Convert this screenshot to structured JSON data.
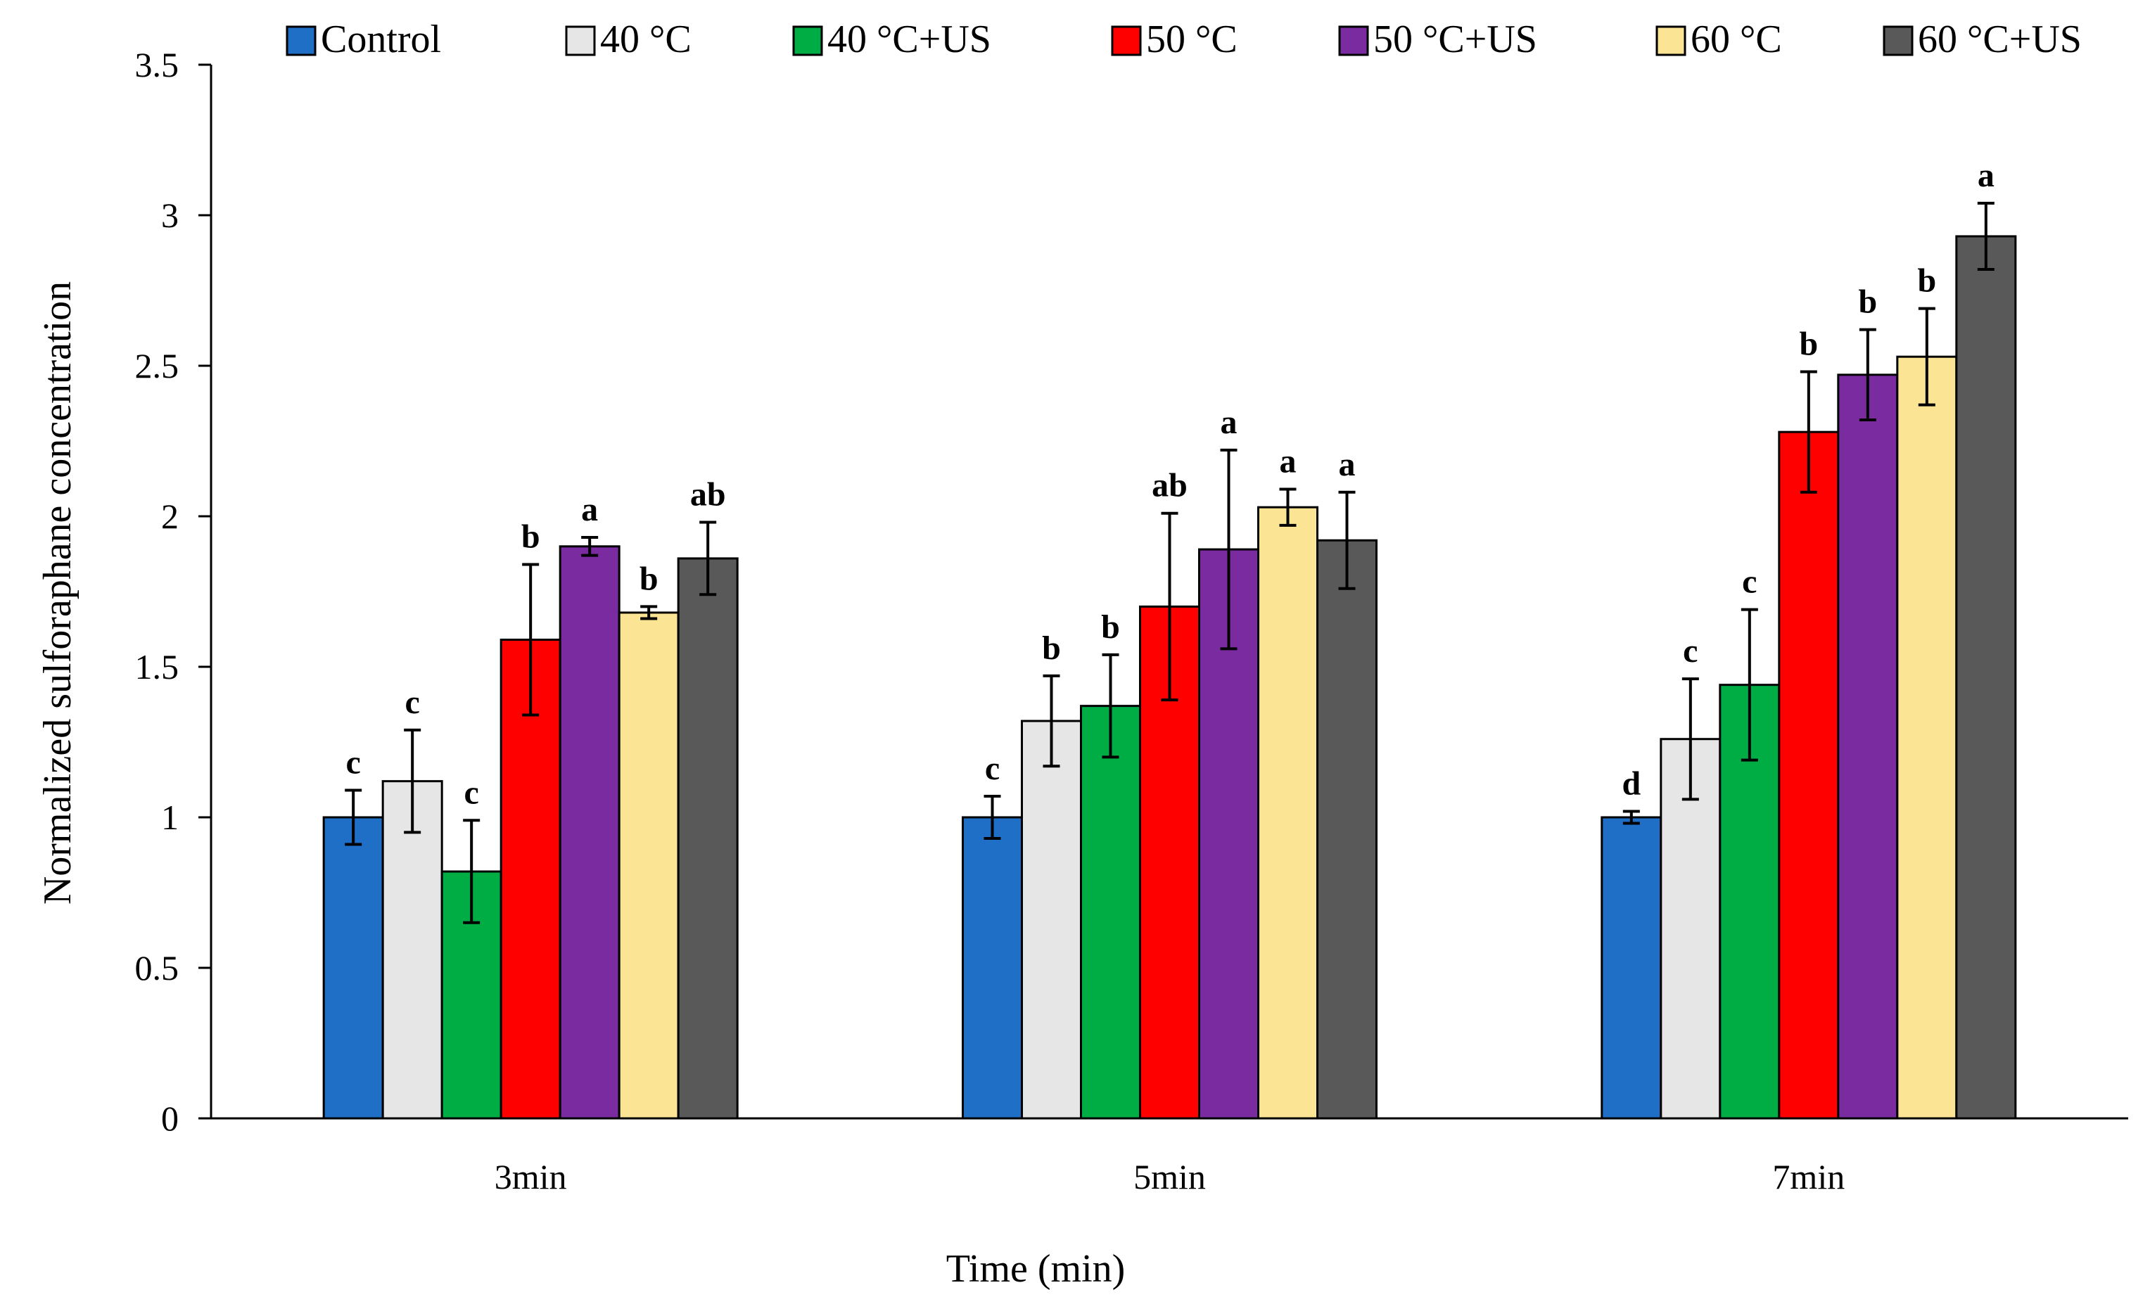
{
  "chart_data": {
    "type": "bar",
    "title": "",
    "xlabel": "Time (min)",
    "ylabel": "Normalized sulforaphane concentration",
    "ylim": [
      0,
      3.5
    ],
    "yticks": [
      "0",
      "0.5",
      "1",
      "1.5",
      "2",
      "2.5",
      "3",
      "3.5"
    ],
    "ytick_values": [
      0,
      0.5,
      1,
      1.5,
      2,
      2.5,
      3,
      3.5
    ],
    "grid": false,
    "legend_position": "top",
    "categories": [
      "3min",
      "5min",
      "7min"
    ],
    "series": [
      {
        "name": "Control",
        "color": "#1f6fc7",
        "values": [
          1.0,
          1.0,
          1.0
        ],
        "errors": [
          0.09,
          0.07,
          0.02
        ],
        "labels": [
          "c",
          "c",
          "d"
        ]
      },
      {
        "name": "40 °C",
        "color": "#e6e6e6",
        "values": [
          1.12,
          1.32,
          1.26
        ],
        "errors": [
          0.17,
          0.15,
          0.2
        ],
        "labels": [
          "c",
          "b",
          "c"
        ]
      },
      {
        "name": "40 °C+US",
        "color": "#00ad45",
        "values": [
          0.82,
          1.37,
          1.44
        ],
        "errors": [
          0.17,
          0.17,
          0.25
        ],
        "labels": [
          "c",
          "b",
          "c"
        ]
      },
      {
        "name": "50 °C",
        "color": "#ff0000",
        "values": [
          1.59,
          1.7,
          2.28
        ],
        "errors": [
          0.25,
          0.31,
          0.2
        ],
        "labels": [
          "b",
          "ab",
          "b"
        ]
      },
      {
        "name": "50 °C+US",
        "color": "#7a2ba0",
        "values": [
          1.9,
          1.89,
          2.47
        ],
        "errors": [
          0.03,
          0.33,
          0.15
        ],
        "labels": [
          "a",
          "a",
          "b"
        ]
      },
      {
        "name": "60 °C",
        "color": "#fce495",
        "values": [
          1.68,
          2.03,
          2.53
        ],
        "errors": [
          0.02,
          0.06,
          0.16
        ],
        "labels": [
          "b",
          "a",
          "b"
        ]
      },
      {
        "name": "60 °C+US",
        "color": "#595959",
        "values": [
          1.86,
          1.92,
          2.93
        ],
        "errors": [
          0.12,
          0.16,
          0.11
        ],
        "labels": [
          "ab",
          "a",
          "a"
        ]
      }
    ]
  }
}
